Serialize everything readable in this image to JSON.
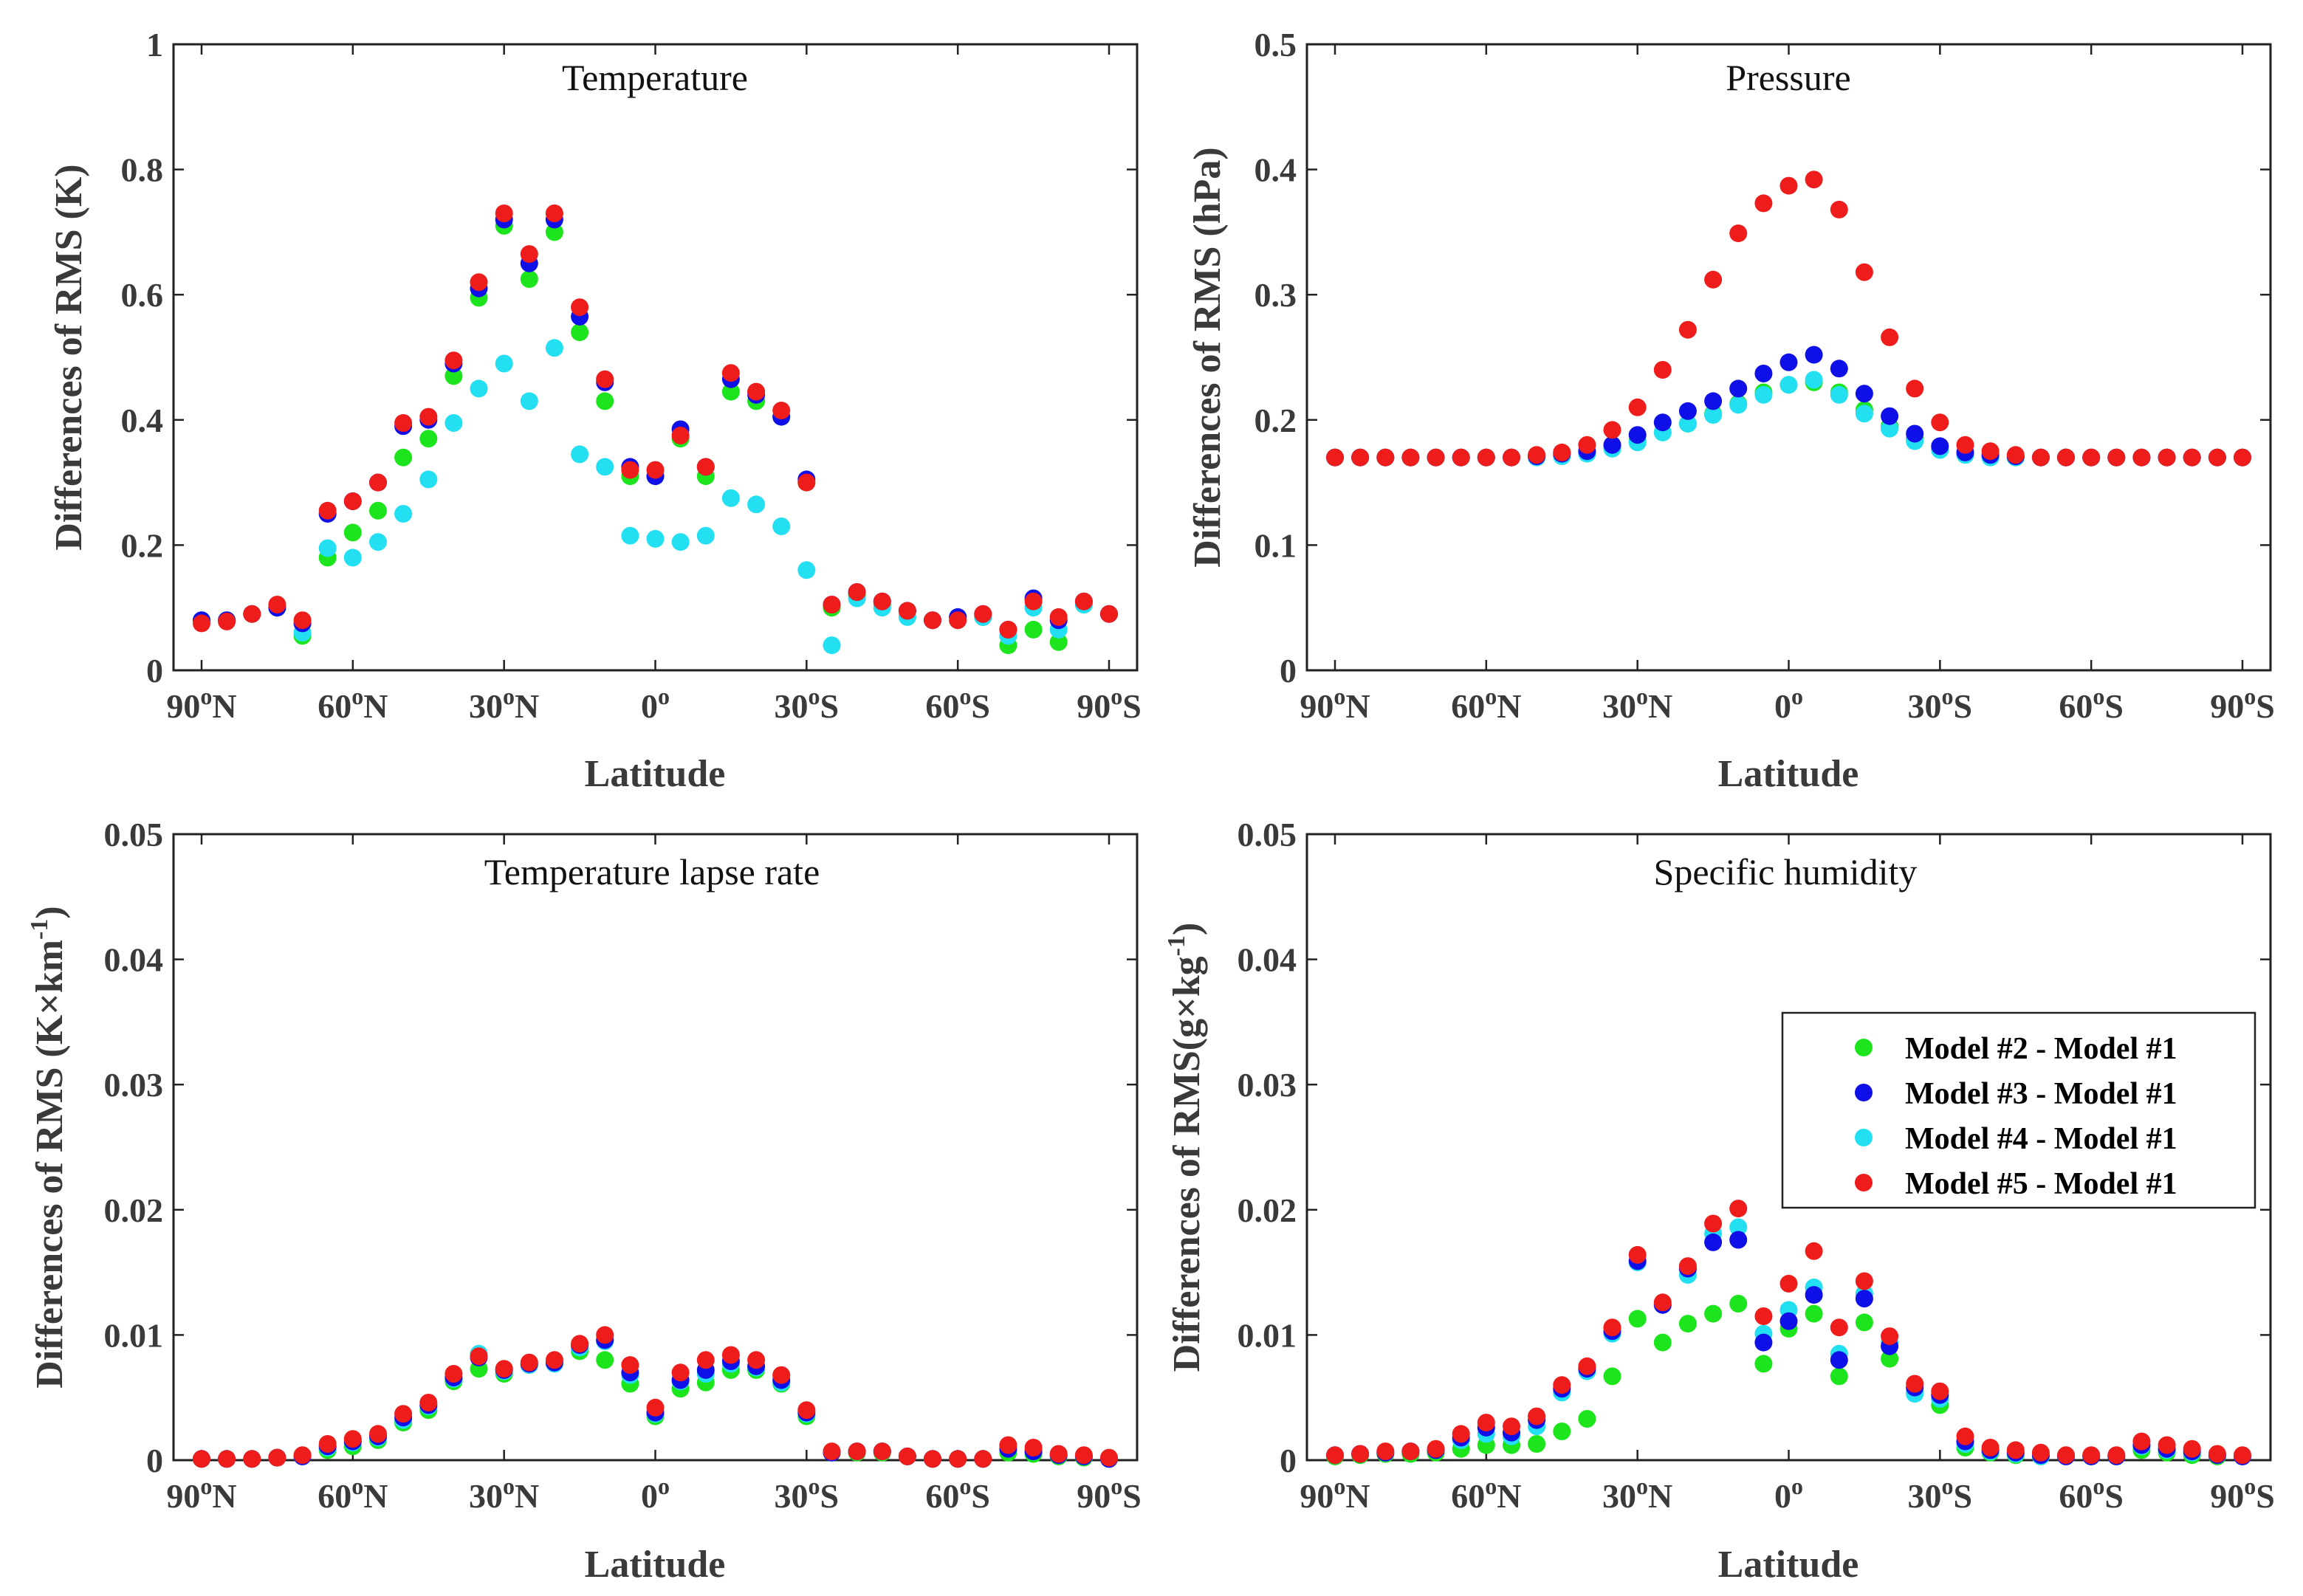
{
  "latitudes": [
    90,
    85,
    80,
    75,
    70,
    65,
    60,
    55,
    50,
    45,
    40,
    35,
    30,
    25,
    20,
    15,
    10,
    5,
    0,
    -5,
    -10,
    -15,
    -20,
    -25,
    -30,
    -35,
    -40,
    -45,
    -50,
    -55,
    -60,
    -65,
    -70,
    -75,
    -80,
    -85,
    -90
  ],
  "colors": {
    "model2": "#1de51d",
    "model3": "#0f0fe8",
    "model4": "#22e0f2",
    "model5": "#ef1c1c"
  },
  "x_ticks": [
    {
      "value": 90,
      "deg": "90",
      "hemi": "N"
    },
    {
      "value": 60,
      "deg": "60",
      "hemi": "N"
    },
    {
      "value": 30,
      "deg": "30",
      "hemi": "N"
    },
    {
      "value": 0,
      "deg": "0",
      "hemi": ""
    },
    {
      "value": -30,
      "deg": "30",
      "hemi": "S"
    },
    {
      "value": -60,
      "deg": "60",
      "hemi": "S"
    },
    {
      "value": -90,
      "deg": "90",
      "hemi": "S"
    }
  ],
  "degree_mark": "o",
  "legend": [
    {
      "key": "model2",
      "label": "Model #2 - Model #1"
    },
    {
      "key": "model3",
      "label": "Model #3 - Model #1"
    },
    {
      "key": "model4",
      "label": "Model #4 - Model #1"
    },
    {
      "key": "model5",
      "label": "Model #5 - Model #1"
    }
  ],
  "chart_data": [
    {
      "type": "scatter",
      "title": "Temperature",
      "xlabel": "Latitude",
      "ylabel": "Differences of RMS (K)",
      "ylim": [
        0,
        1
      ],
      "y_ticks": [
        "0",
        "0.2",
        "0.4",
        "0.6",
        "0.8",
        "1"
      ],
      "y_tick_values": [
        0,
        0.2,
        0.4,
        0.6,
        0.8,
        1
      ],
      "series": [
        {
          "key": "model2",
          "name": "Model #2 - Model #1",
          "values": [
            0.08,
            0.08,
            0.09,
            0.1,
            0.055,
            0.18,
            0.22,
            0.255,
            0.34,
            0.37,
            0.47,
            0.595,
            0.71,
            0.625,
            0.7,
            0.54,
            0.43,
            0.31,
            0.31,
            0.37,
            0.31,
            0.445,
            0.43,
            0.405,
            0.3,
            0.1,
            0.12,
            0.105,
            0.095,
            0.08,
            0.085,
            0.085,
            0.04,
            0.065,
            0.045,
            0.105,
            0.09
          ]
        },
        {
          "key": "model3",
          "name": "Model #3 - Model #1",
          "values": [
            0.08,
            0.08,
            0.09,
            0.1,
            0.075,
            0.25,
            0.27,
            0.3,
            0.39,
            0.4,
            0.49,
            0.61,
            0.72,
            0.65,
            0.72,
            0.565,
            0.46,
            0.325,
            0.31,
            0.385,
            0.325,
            0.465,
            0.44,
            0.405,
            0.305,
            0.105,
            0.125,
            0.11,
            0.095,
            0.08,
            0.085,
            0.09,
            0.065,
            0.115,
            0.08,
            0.11,
            0.09
          ]
        },
        {
          "key": "model4",
          "name": "Model #4 - Model #1",
          "values": [
            0.08,
            0.08,
            0.09,
            0.1,
            0.06,
            0.195,
            0.18,
            0.205,
            0.25,
            0.305,
            0.395,
            0.45,
            0.49,
            0.43,
            0.515,
            0.345,
            0.325,
            0.215,
            0.21,
            0.205,
            0.215,
            0.275,
            0.265,
            0.23,
            0.16,
            0.04,
            0.115,
            0.1,
            0.085,
            0.08,
            0.08,
            0.085,
            0.055,
            0.1,
            0.065,
            0.105,
            0.09
          ]
        },
        {
          "key": "model5",
          "name": "Model #5 - Model #1",
          "values": [
            0.075,
            0.078,
            0.09,
            0.105,
            0.08,
            0.255,
            0.27,
            0.3,
            0.395,
            0.405,
            0.495,
            0.62,
            0.73,
            0.665,
            0.73,
            0.58,
            0.465,
            0.32,
            0.32,
            0.375,
            0.325,
            0.475,
            0.445,
            0.415,
            0.3,
            0.105,
            0.125,
            0.11,
            0.095,
            0.08,
            0.08,
            0.09,
            0.065,
            0.11,
            0.085,
            0.11,
            0.09
          ]
        }
      ]
    },
    {
      "type": "scatter",
      "title": "Pressure",
      "xlabel": "Latitude",
      "ylabel": "Differences of RMS (hPa)",
      "ylim": [
        0,
        0.5
      ],
      "y_ticks": [
        "0",
        "0.1",
        "0.2",
        "0.3",
        "0.4",
        "0.5"
      ],
      "y_tick_values": [
        0,
        0.1,
        0.2,
        0.3,
        0.4,
        0.5
      ],
      "series": [
        {
          "key": "model2",
          "name": "Model #2 - Model #1",
          "values": [
            0.17,
            0.17,
            0.17,
            0.17,
            0.17,
            0.17,
            0.17,
            0.17,
            0.171,
            0.172,
            0.174,
            0.178,
            0.183,
            0.19,
            0.197,
            0.205,
            0.213,
            0.222,
            0.228,
            0.23,
            0.222,
            0.208,
            0.195,
            0.185,
            0.177,
            0.173,
            0.171,
            0.17,
            0.17,
            0.17,
            0.17,
            0.17,
            0.17,
            0.17,
            0.17,
            0.17,
            0.17
          ]
        },
        {
          "key": "model3",
          "name": "Model #3 - Model #1",
          "values": [
            0.17,
            0.17,
            0.17,
            0.17,
            0.17,
            0.17,
            0.17,
            0.17,
            0.171,
            0.173,
            0.175,
            0.18,
            0.188,
            0.198,
            0.207,
            0.215,
            0.225,
            0.237,
            0.246,
            0.252,
            0.241,
            0.221,
            0.203,
            0.189,
            0.179,
            0.174,
            0.172,
            0.171,
            0.17,
            0.17,
            0.17,
            0.17,
            0.17,
            0.17,
            0.17,
            0.17,
            0.17
          ]
        },
        {
          "key": "model4",
          "name": "Model #4 - Model #1",
          "values": [
            0.17,
            0.17,
            0.17,
            0.17,
            0.17,
            0.17,
            0.17,
            0.17,
            0.17,
            0.171,
            0.173,
            0.177,
            0.182,
            0.19,
            0.197,
            0.204,
            0.212,
            0.22,
            0.228,
            0.232,
            0.22,
            0.205,
            0.193,
            0.183,
            0.176,
            0.172,
            0.17,
            0.17,
            0.17,
            0.17,
            0.17,
            0.17,
            0.17,
            0.17,
            0.17,
            0.17,
            0.17
          ]
        },
        {
          "key": "model5",
          "name": "Model #5 - Model #1",
          "values": [
            0.17,
            0.17,
            0.17,
            0.17,
            0.17,
            0.17,
            0.17,
            0.17,
            0.172,
            0.174,
            0.18,
            0.192,
            0.21,
            0.24,
            0.272,
            0.312,
            0.349,
            0.373,
            0.387,
            0.392,
            0.368,
            0.318,
            0.266,
            0.225,
            0.198,
            0.18,
            0.175,
            0.172,
            0.17,
            0.17,
            0.17,
            0.17,
            0.17,
            0.17,
            0.17,
            0.17,
            0.17
          ]
        }
      ]
    },
    {
      "type": "scatter",
      "title": "Temperature lapse rate",
      "xlabel": "Latitude",
      "ylabel": "Differences of RMS (K×km",
      "ylabel_sup": "-1",
      "ylabel_tail": ")",
      "ylim": [
        0,
        0.05
      ],
      "y_ticks": [
        "0",
        "0.01",
        "0.02",
        "0.03",
        "0.04",
        "0.05"
      ],
      "y_tick_values": [
        0,
        0.01,
        0.02,
        0.03,
        0.04,
        0.05
      ],
      "series": [
        {
          "key": "model2",
          "name": "Model #2 - Model #1",
          "values": [
            0.0001,
            0.0001,
            0.0001,
            0.0002,
            0.0003,
            0.0008,
            0.0011,
            0.0016,
            0.003,
            0.004,
            0.0063,
            0.0073,
            0.0069,
            0.0076,
            0.0078,
            0.0087,
            0.008,
            0.0061,
            0.0035,
            0.0057,
            0.0062,
            0.0072,
            0.0072,
            0.0061,
            0.0035,
            0.0006,
            0.0006,
            0.0006,
            0.0003,
            0.0001,
            0.0001,
            0.0001,
            0.0006,
            0.0005,
            0.0003,
            0.0002,
            0.0001
          ]
        },
        {
          "key": "model3",
          "name": "Model #3 - Model #1",
          "values": [
            0.0001,
            0.0001,
            0.0001,
            0.0002,
            0.0003,
            0.0011,
            0.0015,
            0.0019,
            0.0034,
            0.0044,
            0.0066,
            0.0082,
            0.0072,
            0.0077,
            0.0078,
            0.0092,
            0.0096,
            0.007,
            0.0038,
            0.0064,
            0.0072,
            0.0079,
            0.0075,
            0.0064,
            0.0038,
            0.0006,
            0.0007,
            0.0007,
            0.0003,
            0.0001,
            0.0001,
            0.0001,
            0.0009,
            0.0007,
            0.0004,
            0.0003,
            0.0001
          ]
        },
        {
          "key": "model4",
          "name": "Model #4 - Model #1",
          "values": [
            0.0001,
            0.0001,
            0.0001,
            0.0002,
            0.0003,
            0.001,
            0.0014,
            0.0018,
            0.0032,
            0.0043,
            0.0065,
            0.0085,
            0.0071,
            0.0076,
            0.0077,
            0.009,
            0.0095,
            0.0068,
            0.0037,
            0.0063,
            0.0069,
            0.0077,
            0.0074,
            0.0062,
            0.0037,
            0.0006,
            0.0007,
            0.0007,
            0.0003,
            0.0001,
            0.0001,
            0.0001,
            0.0009,
            0.0007,
            0.0004,
            0.0003,
            0.0001
          ]
        },
        {
          "key": "model5",
          "name": "Model #5 - Model #1",
          "values": [
            0.0001,
            0.0001,
            0.0001,
            0.0002,
            0.0004,
            0.0013,
            0.0017,
            0.0021,
            0.0037,
            0.0046,
            0.0069,
            0.0083,
            0.0073,
            0.0078,
            0.008,
            0.0093,
            0.01,
            0.0076,
            0.0042,
            0.007,
            0.008,
            0.0084,
            0.008,
            0.0068,
            0.004,
            0.0007,
            0.0007,
            0.0007,
            0.0003,
            0.0001,
            0.0001,
            0.0001,
            0.0012,
            0.001,
            0.0005,
            0.0004,
            0.0002
          ]
        }
      ]
    },
    {
      "type": "scatter",
      "title": "Specific humidity",
      "xlabel": "Latitude",
      "ylabel": "Differences of RMS(g×kg",
      "ylabel_sup": "-1",
      "ylabel_tail": ")",
      "ylim": [
        0,
        0.05
      ],
      "y_ticks": [
        "0",
        "0.01",
        "0.02",
        "0.03",
        "0.04",
        "0.05"
      ],
      "y_tick_values": [
        0,
        0.01,
        0.02,
        0.03,
        0.04,
        0.05
      ],
      "legend_position": "right",
      "series": [
        {
          "key": "model2",
          "name": "Model #2 - Model #1",
          "values": [
            0.0003,
            0.0004,
            0.0005,
            0.0005,
            0.0006,
            0.0009,
            0.0012,
            0.0012,
            0.0013,
            0.0023,
            0.0033,
            0.0067,
            0.0113,
            0.0094,
            0.0109,
            0.0117,
            0.0125,
            0.0077,
            0.0105,
            0.0117,
            0.0067,
            0.011,
            0.0081,
            0.0054,
            0.0044,
            0.001,
            0.0006,
            0.0004,
            0.0003,
            0.0003,
            0.0003,
            0.0003,
            0.0008,
            0.0006,
            0.0004,
            0.0003,
            0.0003
          ]
        },
        {
          "key": "model3",
          "name": "Model #3 - Model #1",
          "values": [
            0.0004,
            0.0005,
            0.0006,
            0.0007,
            0.0008,
            0.0018,
            0.0026,
            0.0022,
            0.0032,
            0.0057,
            0.0073,
            0.0103,
            0.0159,
            0.0124,
            0.0153,
            0.0174,
            0.0176,
            0.0094,
            0.0111,
            0.0132,
            0.008,
            0.0129,
            0.0091,
            0.0058,
            0.0052,
            0.0015,
            0.0008,
            0.0006,
            0.0004,
            0.0003,
            0.0003,
            0.0003,
            0.0012,
            0.0009,
            0.0007,
            0.0004,
            0.0003
          ]
        },
        {
          "key": "model4",
          "name": "Model #4 - Model #1",
          "values": [
            0.0004,
            0.0005,
            0.0006,
            0.0007,
            0.0008,
            0.0016,
            0.0021,
            0.0019,
            0.0027,
            0.0054,
            0.0071,
            0.0101,
            0.0158,
            0.0125,
            0.0148,
            0.0181,
            0.0186,
            0.0101,
            0.012,
            0.0138,
            0.0085,
            0.0133,
            0.0094,
            0.0053,
            0.0049,
            0.0013,
            0.0007,
            0.0005,
            0.0003,
            0.0003,
            0.0003,
            0.0003,
            0.0011,
            0.0008,
            0.0006,
            0.0004,
            0.0003
          ]
        },
        {
          "key": "model5",
          "name": "Model #5 - Model #1",
          "values": [
            0.0004,
            0.0005,
            0.0007,
            0.0007,
            0.0009,
            0.0021,
            0.003,
            0.0027,
            0.0035,
            0.006,
            0.0075,
            0.0106,
            0.0164,
            0.0126,
            0.0155,
            0.0189,
            0.0201,
            0.0115,
            0.0141,
            0.0167,
            0.0106,
            0.0143,
            0.0099,
            0.0061,
            0.0055,
            0.0019,
            0.001,
            0.0008,
            0.0006,
            0.0004,
            0.0004,
            0.0004,
            0.0015,
            0.0012,
            0.0009,
            0.0005,
            0.0004
          ]
        }
      ]
    }
  ]
}
